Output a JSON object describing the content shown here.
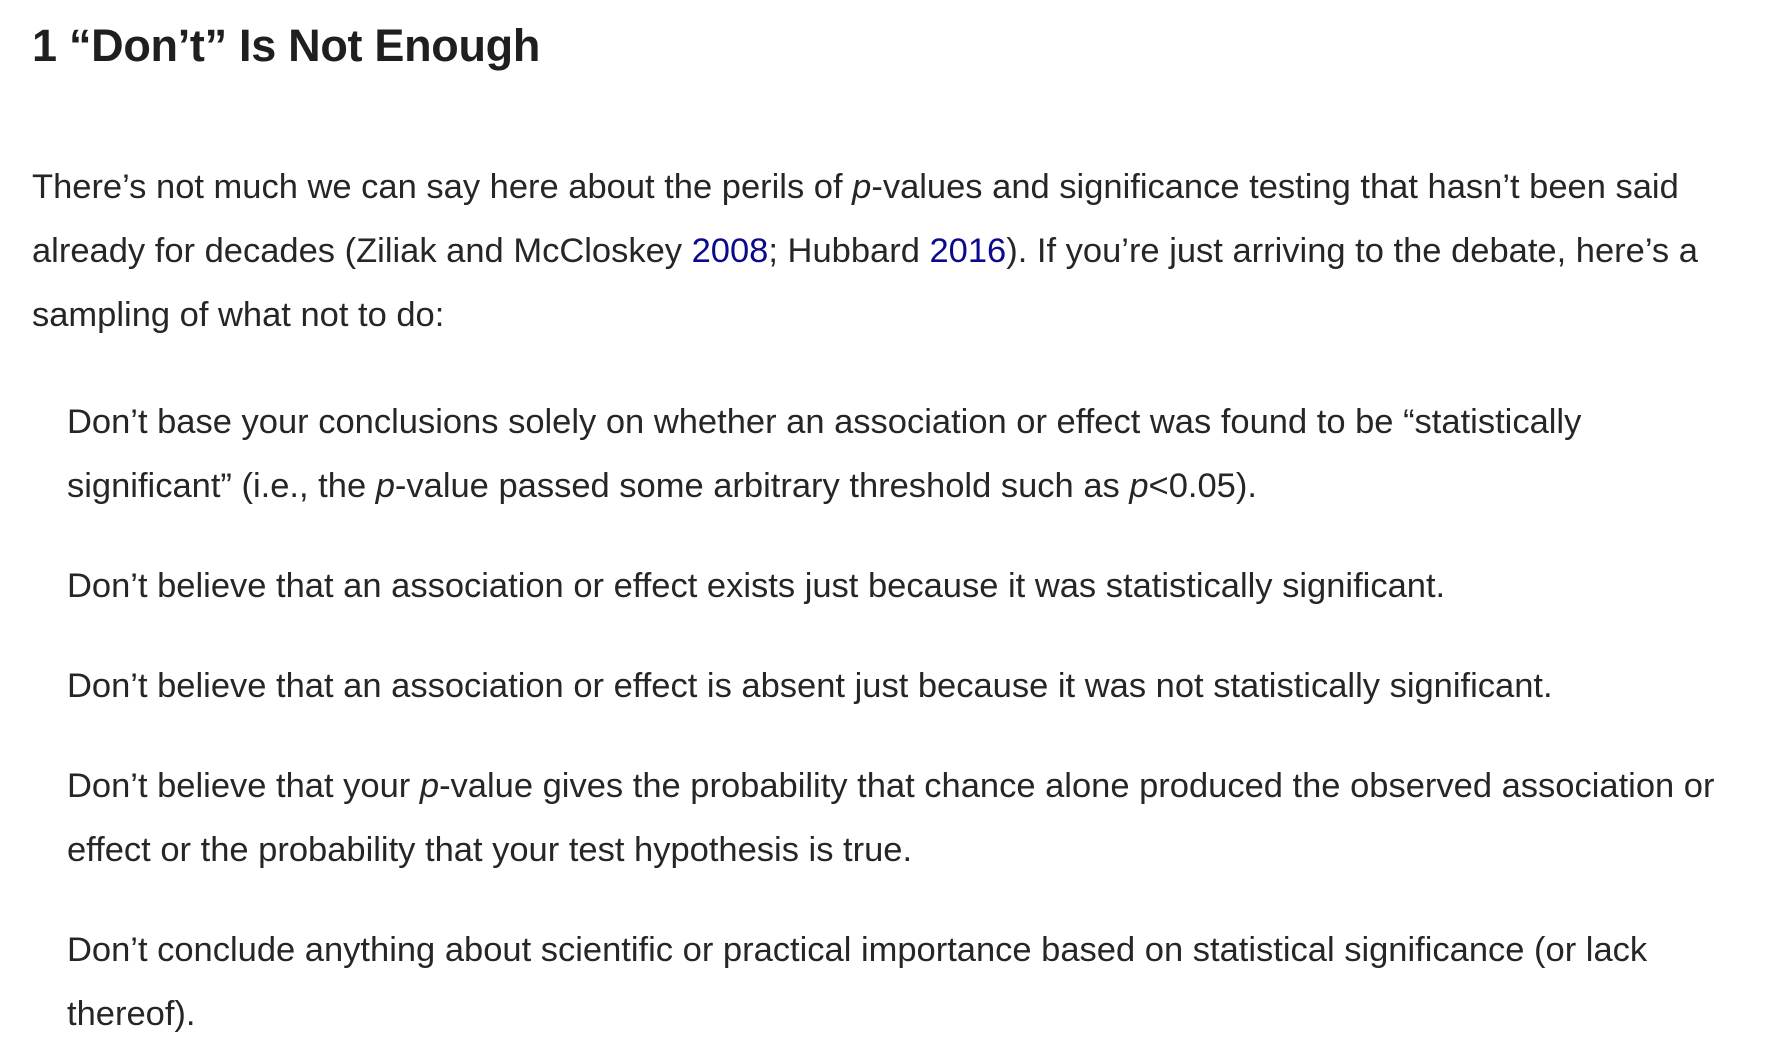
{
  "heading": {
    "number": "1",
    "title": "“Don’t” Is Not Enough"
  },
  "intro": {
    "text_1": "There’s not much we can say here about the perils of ",
    "p": "p",
    "text_2": "-values and significance testing that hasn’t been said already for decades (Ziliak and McCloskey ",
    "cite_1": "2008",
    "text_3": "; Hubbard ",
    "cite_2": "2016",
    "text_4": "). If you’re just arriving to the debate, here’s a sampling of what not to do:"
  },
  "rules": [
    {
      "t1": "Don’t base your conclusions solely on whether an association or effect was found to be “statistically significant” (i.e., the ",
      "p1": "p",
      "t2": "-value passed some arbitrary threshold such as ",
      "p2": "p",
      "t3": "<0.05)."
    },
    {
      "t1": "Don’t believe that an association or effect exists just because it was statistically significant."
    },
    {
      "t1": "Don’t believe that an association or effect is absent just because it was not statistically significant."
    },
    {
      "t1": "Don’t believe that your ",
      "p1": "p",
      "t2": "-value gives the probability that chance alone produced the observed association or effect or the probability that your test hypothesis is true."
    },
    {
      "t1": "Don’t conclude anything about scientific or practical importance based on statistical significance (or lack thereof)."
    }
  ],
  "colors": {
    "text": "#262626",
    "link": "#0a0a8c"
  }
}
